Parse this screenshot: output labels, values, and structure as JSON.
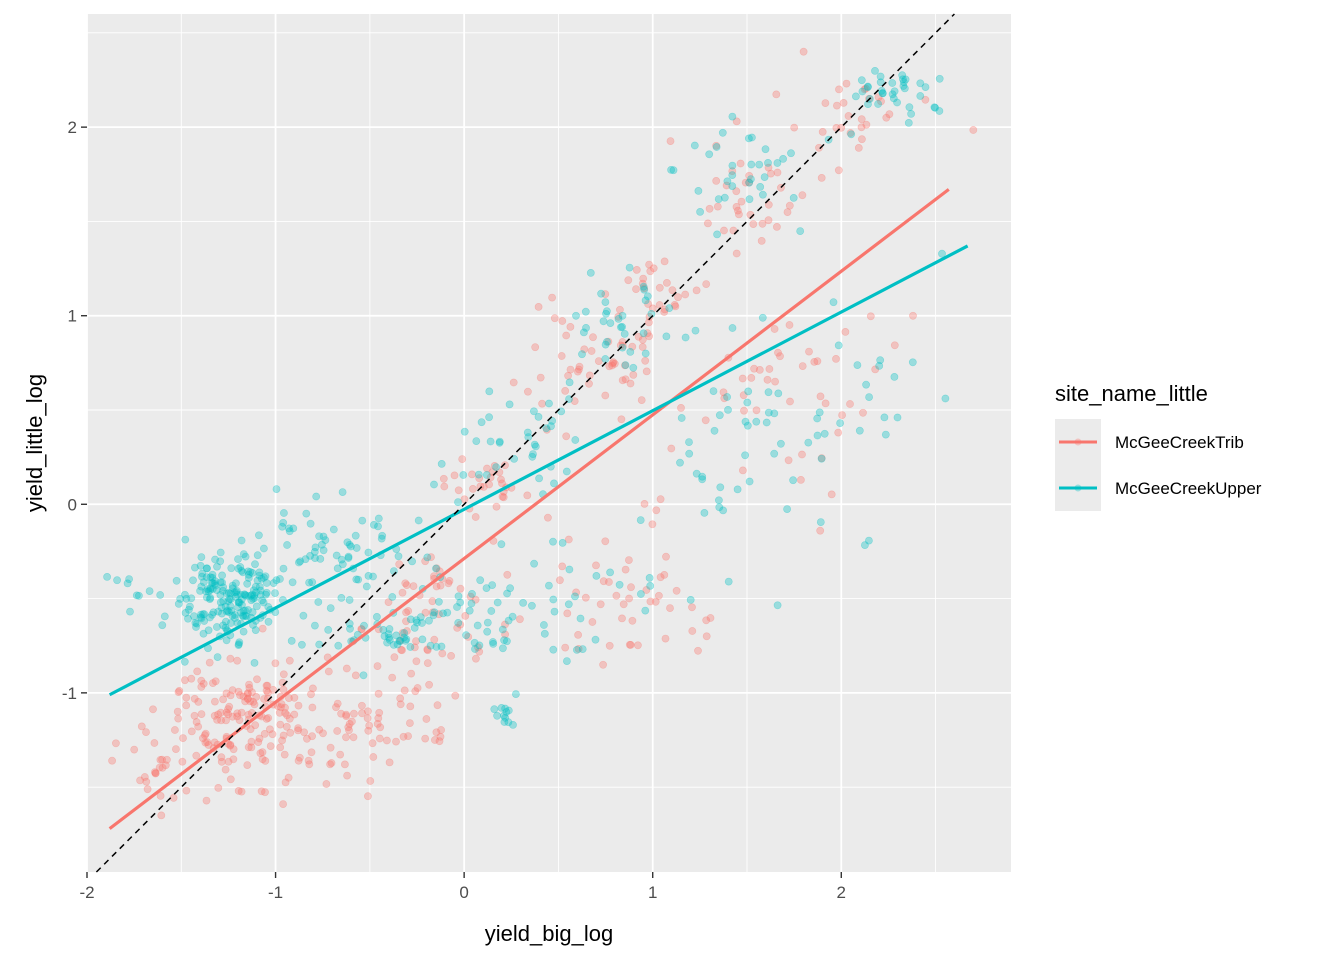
{
  "chart_data": {
    "type": "scatter",
    "xlabel": "yield_big_log",
    "ylabel": "yield_little_log",
    "xlim": [
      -2.0,
      2.9
    ],
    "ylim": [
      -1.95,
      2.6
    ],
    "x_ticks": [
      -2,
      -1,
      0,
      1,
      2
    ],
    "x_tick_labels": [
      "-2",
      "-1",
      "0",
      "1",
      "2"
    ],
    "y_ticks": [
      -1,
      0,
      1,
      2
    ],
    "y_tick_labels": [
      "-1",
      "0",
      "1",
      "2"
    ],
    "grid": true,
    "legend": {
      "title": "site_name_little",
      "position": "right",
      "entries": [
        "McGeeCreekTrib",
        "McGeeCreekUpper"
      ]
    },
    "reference_line": {
      "slope": 1,
      "intercept": 0,
      "style": "dashed",
      "color": "#000000"
    },
    "series": [
      {
        "name": "McGeeCreekTrib",
        "color": "#F8766D",
        "smooth_line": [
          [
            -1.88,
            -1.72
          ],
          [
            2.57,
            1.67
          ]
        ],
        "clusters": [
          {
            "center": [
              -1.15,
              -1.15
            ],
            "spread": [
              0.35,
              0.3
            ],
            "count": 170
          },
          {
            "center": [
              -0.5,
              -1.2
            ],
            "spread": [
              0.35,
              0.22
            ],
            "count": 60
          },
          {
            "center": [
              -0.2,
              -0.6
            ],
            "spread": [
              0.35,
              0.3
            ],
            "count": 60
          },
          {
            "center": [
              0.1,
              0.1
            ],
            "spread": [
              0.2,
              0.2
            ],
            "count": 30
          },
          {
            "center": [
              0.65,
              0.75
            ],
            "spread": [
              0.3,
              0.3
            ],
            "count": 50
          },
          {
            "center": [
              1.0,
              1.1
            ],
            "spread": [
              0.25,
              0.2
            ],
            "count": 30
          },
          {
            "center": [
              1.5,
              1.6
            ],
            "spread": [
              0.3,
              0.3
            ],
            "count": 35
          },
          {
            "center": [
              2.05,
              2.1
            ],
            "spread": [
              0.3,
              0.25
            ],
            "count": 30
          },
          {
            "center": [
              0.8,
              -0.5
            ],
            "spread": [
              0.5,
              0.4
            ],
            "count": 50
          },
          {
            "center": [
              1.7,
              0.6
            ],
            "spread": [
              0.5,
              0.5
            ],
            "count": 45
          },
          {
            "center": [
              -1.6,
              -1.4
            ],
            "spread": [
              0.2,
              0.2
            ],
            "count": 25
          }
        ]
      },
      {
        "name": "McGeeCreekUpper",
        "color": "#00BFC4",
        "smooth_line": [
          [
            -1.88,
            -1.01
          ],
          [
            2.67,
            1.37
          ]
        ],
        "clusters": [
          {
            "center": [
              -1.25,
              -0.5
            ],
            "spread": [
              0.25,
              0.2
            ],
            "count": 190
          },
          {
            "center": [
              -0.7,
              -0.25
            ],
            "spread": [
              0.4,
              0.25
            ],
            "count": 70
          },
          {
            "center": [
              -0.4,
              -0.7
            ],
            "spread": [
              0.3,
              0.12
            ],
            "count": 45
          },
          {
            "center": [
              0.05,
              -0.55
            ],
            "spread": [
              0.25,
              0.25
            ],
            "count": 40
          },
          {
            "center": [
              0.3,
              0.3
            ],
            "spread": [
              0.35,
              0.25
            ],
            "count": 35
          },
          {
            "center": [
              0.8,
              0.9
            ],
            "spread": [
              0.25,
              0.25
            ],
            "count": 35
          },
          {
            "center": [
              1.5,
              1.75
            ],
            "spread": [
              0.35,
              0.25
            ],
            "count": 35
          },
          {
            "center": [
              2.3,
              2.2
            ],
            "spread": [
              0.3,
              0.15
            ],
            "count": 35
          },
          {
            "center": [
              1.5,
              0.3
            ],
            "spread": [
              0.5,
              0.5
            ],
            "count": 50
          },
          {
            "center": [
              0.6,
              -0.5
            ],
            "spread": [
              0.4,
              0.4
            ],
            "count": 30
          },
          {
            "center": [
              2.2,
              0.7
            ],
            "spread": [
              0.3,
              0.5
            ],
            "count": 15
          },
          {
            "center": [
              0.22,
              -1.1
            ],
            "spread": [
              0.05,
              0.08
            ],
            "count": 12
          },
          {
            "center": [
              -1.8,
              -0.45
            ],
            "spread": [
              0.1,
              0.1
            ],
            "count": 8
          }
        ]
      }
    ]
  }
}
